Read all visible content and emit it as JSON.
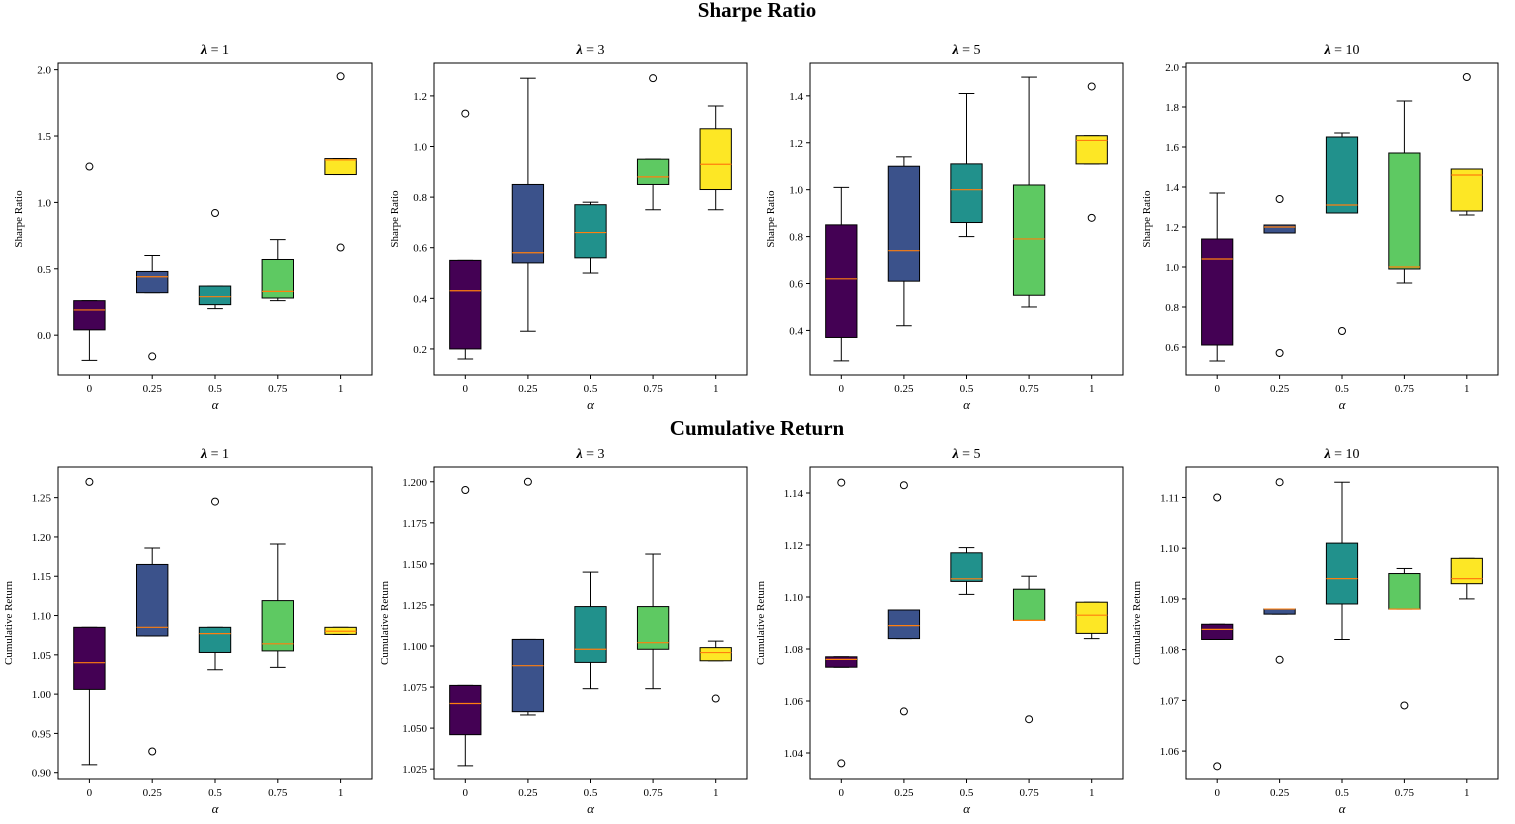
{
  "colors": {
    "boxes": [
      "#440154",
      "#3b528b",
      "#21918c",
      "#5ec962",
      "#fde725"
    ],
    "median": "#ff7f0e"
  },
  "chart_data": [
    {
      "type": "box",
      "group_title": "Sharpe Ratio",
      "title": "λ = 1",
      "lambda_symbol": "λ",
      "lambda_value": "1",
      "xlabel": "α",
      "ylabel": "Sharpe Ratio",
      "categories": [
        "0",
        "0.25",
        "0.5",
        "0.75",
        "1"
      ],
      "ylim": [
        -0.3,
        2.05
      ],
      "yticks": [
        "0.0",
        "0.5",
        "1.0",
        "1.5",
        "2.0"
      ],
      "ytick_values": [
        0,
        0.5,
        1.0,
        1.5,
        2.0
      ],
      "boxes": [
        {
          "whislo": -0.19,
          "q1": 0.04,
          "med": 0.19,
          "q3": 0.26,
          "whishi": 0.26,
          "fliers": [
            1.27
          ]
        },
        {
          "whislo": 0.32,
          "q1": 0.32,
          "med": 0.44,
          "q3": 0.48,
          "whishi": 0.6,
          "fliers": [
            -0.16
          ]
        },
        {
          "whislo": 0.2,
          "q1": 0.23,
          "med": 0.29,
          "q3": 0.37,
          "whishi": 0.37,
          "fliers": [
            0.92
          ]
        },
        {
          "whislo": 0.26,
          "q1": 0.28,
          "med": 0.33,
          "q3": 0.57,
          "whishi": 0.72,
          "fliers": []
        },
        {
          "whislo": 1.21,
          "q1": 1.21,
          "med": 1.32,
          "q3": 1.33,
          "whishi": 1.33,
          "fliers": [
            1.95,
            0.66
          ]
        }
      ]
    },
    {
      "type": "box",
      "group_title": "Sharpe Ratio",
      "title": "λ = 3",
      "lambda_symbol": "λ",
      "lambda_value": "3",
      "xlabel": "α",
      "ylabel": "Sharpe Ratio",
      "categories": [
        "0",
        "0.25",
        "0.5",
        "0.75",
        "1"
      ],
      "ylim": [
        0.097,
        1.33
      ],
      "yticks": [
        "0.2",
        "0.4",
        "0.6",
        "0.8",
        "1.0",
        "1.2"
      ],
      "ytick_values": [
        0.2,
        0.4,
        0.6,
        0.8,
        1.0,
        1.2
      ],
      "boxes": [
        {
          "whislo": 0.16,
          "q1": 0.2,
          "med": 0.43,
          "q3": 0.55,
          "whishi": 0.55,
          "fliers": [
            1.13
          ]
        },
        {
          "whislo": 0.27,
          "q1": 0.54,
          "med": 0.58,
          "q3": 0.85,
          "whishi": 1.27,
          "fliers": []
        },
        {
          "whislo": 0.5,
          "q1": 0.56,
          "med": 0.66,
          "q3": 0.77,
          "whishi": 0.78,
          "fliers": []
        },
        {
          "whislo": 0.75,
          "q1": 0.85,
          "med": 0.88,
          "q3": 0.95,
          "whishi": 0.95,
          "fliers": [
            1.27
          ]
        },
        {
          "whislo": 0.75,
          "q1": 0.83,
          "med": 0.93,
          "q3": 1.07,
          "whishi": 1.16,
          "fliers": []
        }
      ]
    },
    {
      "type": "box",
      "group_title": "Sharpe Ratio",
      "title": "λ = 5",
      "lambda_symbol": "λ",
      "lambda_value": "5",
      "xlabel": "α",
      "ylabel": "Sharpe Ratio",
      "categories": [
        "0",
        "0.25",
        "0.5",
        "0.75",
        "1"
      ],
      "ylim": [
        0.21,
        1.54
      ],
      "yticks": [
        "0.4",
        "0.6",
        "0.8",
        "1.0",
        "1.2",
        "1.4"
      ],
      "ytick_values": [
        0.4,
        0.6,
        0.8,
        1.0,
        1.2,
        1.4
      ],
      "boxes": [
        {
          "whislo": 0.27,
          "q1": 0.37,
          "med": 0.62,
          "q3": 0.85,
          "whishi": 1.01,
          "fliers": []
        },
        {
          "whislo": 0.42,
          "q1": 0.61,
          "med": 0.74,
          "q3": 1.1,
          "whishi": 1.14,
          "fliers": []
        },
        {
          "whislo": 0.8,
          "q1": 0.86,
          "med": 1.0,
          "q3": 1.11,
          "whishi": 1.41,
          "fliers": []
        },
        {
          "whislo": 0.5,
          "q1": 0.55,
          "med": 0.79,
          "q3": 1.02,
          "whishi": 1.48,
          "fliers": []
        },
        {
          "whislo": 1.11,
          "q1": 1.11,
          "med": 1.21,
          "q3": 1.23,
          "whishi": 1.23,
          "fliers": [
            1.44,
            0.88
          ]
        }
      ]
    },
    {
      "type": "box",
      "group_title": "Sharpe Ratio",
      "title": "λ = 10",
      "lambda_symbol": "λ",
      "lambda_value": "10",
      "xlabel": "α",
      "ylabel": "Sharpe Ratio",
      "categories": [
        "0",
        "0.25",
        "0.5",
        "0.75",
        "1"
      ],
      "ylim": [
        0.46,
        2.02
      ],
      "yticks": [
        "0.6",
        "0.8",
        "1.0",
        "1.2",
        "1.4",
        "1.6",
        "1.8",
        "2.0"
      ],
      "ytick_values": [
        0.6,
        0.8,
        1.0,
        1.2,
        1.4,
        1.6,
        1.8,
        2.0
      ],
      "boxes": [
        {
          "whislo": 0.53,
          "q1": 0.61,
          "med": 1.04,
          "q3": 1.14,
          "whishi": 1.37,
          "fliers": []
        },
        {
          "whislo": 1.17,
          "q1": 1.17,
          "med": 1.2,
          "q3": 1.21,
          "whishi": 1.21,
          "fliers": [
            1.34,
            0.57
          ]
        },
        {
          "whislo": 1.27,
          "q1": 1.27,
          "med": 1.31,
          "q3": 1.65,
          "whishi": 1.67,
          "fliers": [
            0.68
          ]
        },
        {
          "whislo": 0.92,
          "q1": 0.99,
          "med": 1.0,
          "q3": 1.57,
          "whishi": 1.83,
          "fliers": []
        },
        {
          "whislo": 1.26,
          "q1": 1.28,
          "med": 1.46,
          "q3": 1.49,
          "whishi": 1.49,
          "fliers": [
            1.95
          ]
        }
      ]
    },
    {
      "type": "box",
      "group_title": "Cumulative Return",
      "title": "λ = 1",
      "lambda_symbol": "λ",
      "lambda_value": "1",
      "xlabel": "α",
      "ylabel": "Cumulative Return",
      "categories": [
        "0",
        "0.25",
        "0.5",
        "0.75",
        "1"
      ],
      "ylim": [
        0.892,
        1.289
      ],
      "yticks": [
        "0.90",
        "0.95",
        "1.00",
        "1.05",
        "1.10",
        "1.15",
        "1.20",
        "1.25"
      ],
      "ytick_values": [
        0.9,
        0.95,
        1.0,
        1.05,
        1.1,
        1.15,
        1.2,
        1.25
      ],
      "boxes": [
        {
          "whislo": 0.91,
          "q1": 1.006,
          "med": 1.04,
          "q3": 1.085,
          "whishi": 1.085,
          "fliers": [
            1.27
          ]
        },
        {
          "whislo": 1.074,
          "q1": 1.074,
          "med": 1.085,
          "q3": 1.165,
          "whishi": 1.186,
          "fliers": [
            0.927
          ]
        },
        {
          "whislo": 1.031,
          "q1": 1.053,
          "med": 1.077,
          "q3": 1.085,
          "whishi": 1.085,
          "fliers": [
            1.245
          ]
        },
        {
          "whislo": 1.034,
          "q1": 1.055,
          "med": 1.064,
          "q3": 1.119,
          "whishi": 1.191,
          "fliers": []
        },
        {
          "whislo": 1.076,
          "q1": 1.076,
          "med": 1.08,
          "q3": 1.085,
          "whishi": 1.085,
          "fliers": []
        }
      ]
    },
    {
      "type": "box",
      "group_title": "Cumulative Return",
      "title": "λ = 3",
      "lambda_symbol": "λ",
      "lambda_value": "3",
      "xlabel": "α",
      "ylabel": "Cumulative Return",
      "categories": [
        "0",
        "0.25",
        "0.5",
        "0.75",
        "1"
      ],
      "ylim": [
        1.019,
        1.209
      ],
      "yticks": [
        "1.025",
        "1.050",
        "1.075",
        "1.100",
        "1.125",
        "1.150",
        "1.175",
        "1.200"
      ],
      "ytick_values": [
        1.025,
        1.05,
        1.075,
        1.1,
        1.125,
        1.15,
        1.175,
        1.2
      ],
      "boxes": [
        {
          "whislo": 1.027,
          "q1": 1.046,
          "med": 1.065,
          "q3": 1.076,
          "whishi": 1.076,
          "fliers": [
            1.195
          ]
        },
        {
          "whislo": 1.058,
          "q1": 1.06,
          "med": 1.088,
          "q3": 1.104,
          "whishi": 1.104,
          "fliers": [
            1.2
          ]
        },
        {
          "whislo": 1.074,
          "q1": 1.09,
          "med": 1.098,
          "q3": 1.124,
          "whishi": 1.145,
          "fliers": []
        },
        {
          "whislo": 1.074,
          "q1": 1.098,
          "med": 1.102,
          "q3": 1.124,
          "whishi": 1.156,
          "fliers": []
        },
        {
          "whislo": 1.091,
          "q1": 1.091,
          "med": 1.096,
          "q3": 1.099,
          "whishi": 1.103,
          "fliers": [
            1.068
          ]
        }
      ]
    },
    {
      "type": "box",
      "group_title": "Cumulative Return",
      "title": "λ = 5",
      "lambda_symbol": "λ",
      "lambda_value": "5",
      "xlabel": "α",
      "ylabel": "Cumulative Return",
      "categories": [
        "0",
        "0.25",
        "0.5",
        "0.75",
        "1"
      ],
      "ylim": [
        1.03,
        1.15
      ],
      "yticks": [
        "1.04",
        "1.06",
        "1.08",
        "1.10",
        "1.12",
        "1.14"
      ],
      "ytick_values": [
        1.04,
        1.06,
        1.08,
        1.1,
        1.12,
        1.14
      ],
      "boxes": [
        {
          "whislo": 1.073,
          "q1": 1.073,
          "med": 1.076,
          "q3": 1.077,
          "whishi": 1.077,
          "fliers": [
            1.144,
            1.036
          ]
        },
        {
          "whislo": 1.084,
          "q1": 1.084,
          "med": 1.089,
          "q3": 1.095,
          "whishi": 1.095,
          "fliers": [
            1.143,
            1.056
          ]
        },
        {
          "whislo": 1.101,
          "q1": 1.106,
          "med": 1.107,
          "q3": 1.117,
          "whishi": 1.119,
          "fliers": []
        },
        {
          "whislo": 1.091,
          "q1": 1.091,
          "med": 1.091,
          "q3": 1.103,
          "whishi": 1.108,
          "fliers": [
            1.053
          ]
        },
        {
          "whislo": 1.084,
          "q1": 1.086,
          "med": 1.093,
          "q3": 1.098,
          "whishi": 1.098,
          "fliers": []
        }
      ]
    },
    {
      "type": "box",
      "group_title": "Cumulative Return",
      "title": "λ = 10",
      "lambda_symbol": "λ",
      "lambda_value": "10",
      "xlabel": "α",
      "ylabel": "Cumulative Return",
      "categories": [
        "0",
        "0.25",
        "0.5",
        "0.75",
        "1"
      ],
      "ylim": [
        1.0545,
        1.116
      ],
      "yticks": [
        "1.06",
        "1.07",
        "1.08",
        "1.09",
        "1.10",
        "1.11"
      ],
      "ytick_values": [
        1.06,
        1.07,
        1.08,
        1.09,
        1.1,
        1.11
      ],
      "boxes": [
        {
          "whislo": 1.082,
          "q1": 1.082,
          "med": 1.084,
          "q3": 1.085,
          "whishi": 1.085,
          "fliers": [
            1.11,
            1.057
          ]
        },
        {
          "whislo": 1.087,
          "q1": 1.087,
          "med": 1.088,
          "q3": 1.088,
          "whishi": 1.088,
          "fliers": [
            1.113,
            1.078
          ]
        },
        {
          "whislo": 1.082,
          "q1": 1.089,
          "med": 1.094,
          "q3": 1.101,
          "whishi": 1.113,
          "fliers": []
        },
        {
          "whislo": 1.088,
          "q1": 1.088,
          "med": 1.088,
          "q3": 1.095,
          "whishi": 1.096,
          "fliers": [
            1.069
          ]
        },
        {
          "whislo": 1.09,
          "q1": 1.093,
          "med": 1.094,
          "q3": 1.098,
          "whishi": 1.098,
          "fliers": []
        }
      ]
    }
  ],
  "group_titles": [
    "Sharpe Ratio",
    "Cumulative Return"
  ]
}
